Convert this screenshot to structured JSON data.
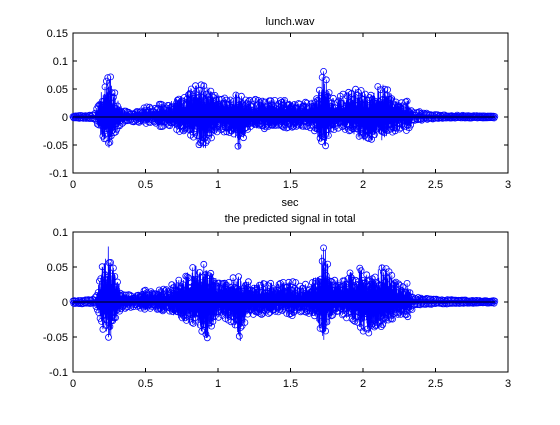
{
  "chart_data": [
    {
      "type": "line",
      "title": "lunch.wav",
      "xlabel": "sec",
      "ylabel": "",
      "xlim": [
        0,
        3
      ],
      "ylim": [
        -0.1,
        0.15
      ],
      "xticks": [
        "0",
        "0.5",
        "1",
        "1.5",
        "2",
        "2.5",
        "3"
      ],
      "yticks": [
        "-0.1",
        "-0.05",
        "0",
        "0.05",
        "0.1",
        "0.15"
      ],
      "marker": "circle",
      "series_color": "#0000ff",
      "grid": false,
      "envelope": {
        "t": [
          0.0,
          0.15,
          0.18,
          0.2,
          0.22,
          0.24,
          0.25,
          0.26,
          0.28,
          0.3,
          0.33,
          0.36,
          0.4,
          0.45,
          0.5,
          0.55,
          0.6,
          0.65,
          0.7,
          0.75,
          0.8,
          0.85,
          0.88,
          0.91,
          0.94,
          0.97,
          1.0,
          1.05,
          1.1,
          1.13,
          1.15,
          1.18,
          1.22,
          1.28,
          1.33,
          1.38,
          1.42,
          1.47,
          1.52,
          1.58,
          1.64,
          1.68,
          1.71,
          1.73,
          1.75,
          1.78,
          1.83,
          1.88,
          1.93,
          1.98,
          2.03,
          2.08,
          2.13,
          2.18,
          2.23,
          2.28,
          2.31,
          2.35,
          2.4,
          2.45,
          2.55,
          2.7,
          2.85,
          2.91
        ],
        "top": [
          0.002,
          0.004,
          0.03,
          0.05,
          0.06,
          0.075,
          0.08,
          0.075,
          0.05,
          0.035,
          0.02,
          0.012,
          0.01,
          0.015,
          0.02,
          0.018,
          0.025,
          0.022,
          0.035,
          0.04,
          0.05,
          0.058,
          0.062,
          0.06,
          0.055,
          0.045,
          0.04,
          0.035,
          0.038,
          0.048,
          0.04,
          0.035,
          0.03,
          0.033,
          0.036,
          0.032,
          0.03,
          0.035,
          0.03,
          0.025,
          0.032,
          0.04,
          0.06,
          0.1,
          0.07,
          0.035,
          0.035,
          0.045,
          0.05,
          0.055,
          0.045,
          0.05,
          0.06,
          0.05,
          0.035,
          0.025,
          0.03,
          0.008,
          0.01,
          0.006,
          0.004,
          0.003,
          0.002,
          0.002
        ],
        "bottom": [
          -0.002,
          -0.004,
          -0.02,
          -0.04,
          -0.045,
          -0.055,
          -0.06,
          -0.055,
          -0.04,
          -0.025,
          -0.015,
          -0.01,
          -0.008,
          -0.01,
          -0.012,
          -0.01,
          -0.018,
          -0.015,
          -0.025,
          -0.03,
          -0.035,
          -0.04,
          -0.055,
          -0.06,
          -0.045,
          -0.035,
          -0.025,
          -0.028,
          -0.035,
          -0.05,
          -0.065,
          -0.035,
          -0.022,
          -0.02,
          -0.022,
          -0.02,
          -0.018,
          -0.02,
          -0.022,
          -0.018,
          -0.02,
          -0.03,
          -0.05,
          -0.06,
          -0.05,
          -0.025,
          -0.02,
          -0.025,
          -0.03,
          -0.04,
          -0.045,
          -0.04,
          -0.042,
          -0.03,
          -0.025,
          -0.02,
          -0.028,
          -0.006,
          -0.006,
          -0.004,
          -0.003,
          -0.002,
          -0.002,
          -0.002
        ]
      }
    },
    {
      "type": "line",
      "title": "the predicted signal in total",
      "xlabel": "",
      "ylabel": "",
      "xlim": [
        0,
        3
      ],
      "ylim": [
        -0.1,
        0.1
      ],
      "xticks": [
        "0",
        "0.5",
        "1",
        "1.5",
        "2",
        "2.5",
        "3"
      ],
      "yticks": [
        "-0.1",
        "-0.05",
        "0",
        "0.05",
        "0.1"
      ],
      "marker": "circle",
      "series_color": "#0000ff",
      "grid": false,
      "envelope": {
        "t": [
          0.0,
          0.15,
          0.18,
          0.2,
          0.22,
          0.24,
          0.25,
          0.26,
          0.28,
          0.3,
          0.33,
          0.36,
          0.4,
          0.45,
          0.5,
          0.55,
          0.6,
          0.65,
          0.7,
          0.75,
          0.8,
          0.85,
          0.88,
          0.91,
          0.94,
          0.97,
          1.0,
          1.05,
          1.1,
          1.13,
          1.15,
          1.18,
          1.22,
          1.28,
          1.33,
          1.38,
          1.42,
          1.47,
          1.52,
          1.58,
          1.64,
          1.68,
          1.71,
          1.73,
          1.75,
          1.78,
          1.83,
          1.88,
          1.93,
          1.98,
          2.03,
          2.08,
          2.13,
          2.18,
          2.23,
          2.28,
          2.31,
          2.35,
          2.4,
          2.45,
          2.55,
          2.7,
          2.85,
          2.91
        ],
        "top": [
          0.002,
          0.004,
          0.03,
          0.05,
          0.06,
          0.078,
          0.083,
          0.075,
          0.05,
          0.032,
          0.018,
          0.012,
          0.01,
          0.014,
          0.018,
          0.016,
          0.022,
          0.02,
          0.03,
          0.036,
          0.045,
          0.055,
          0.058,
          0.056,
          0.05,
          0.04,
          0.036,
          0.03,
          0.034,
          0.042,
          0.038,
          0.032,
          0.028,
          0.03,
          0.034,
          0.03,
          0.028,
          0.032,
          0.03,
          0.024,
          0.03,
          0.04,
          0.06,
          0.096,
          0.065,
          0.032,
          0.033,
          0.04,
          0.045,
          0.05,
          0.04,
          0.045,
          0.055,
          0.048,
          0.03,
          0.022,
          0.028,
          0.006,
          0.008,
          0.005,
          0.004,
          0.003,
          0.002,
          0.002
        ],
        "bottom": [
          -0.002,
          -0.004,
          -0.02,
          -0.038,
          -0.042,
          -0.05,
          -0.055,
          -0.05,
          -0.035,
          -0.022,
          -0.014,
          -0.01,
          -0.008,
          -0.01,
          -0.012,
          -0.01,
          -0.016,
          -0.014,
          -0.022,
          -0.026,
          -0.032,
          -0.036,
          -0.05,
          -0.065,
          -0.04,
          -0.03,
          -0.022,
          -0.025,
          -0.03,
          -0.045,
          -0.06,
          -0.032,
          -0.02,
          -0.018,
          -0.02,
          -0.018,
          -0.016,
          -0.018,
          -0.02,
          -0.016,
          -0.018,
          -0.028,
          -0.045,
          -0.055,
          -0.045,
          -0.022,
          -0.018,
          -0.022,
          -0.028,
          -0.038,
          -0.048,
          -0.038,
          -0.04,
          -0.028,
          -0.022,
          -0.018,
          -0.025,
          -0.005,
          -0.005,
          -0.004,
          -0.003,
          -0.002,
          -0.002,
          -0.002
        ]
      }
    }
  ]
}
